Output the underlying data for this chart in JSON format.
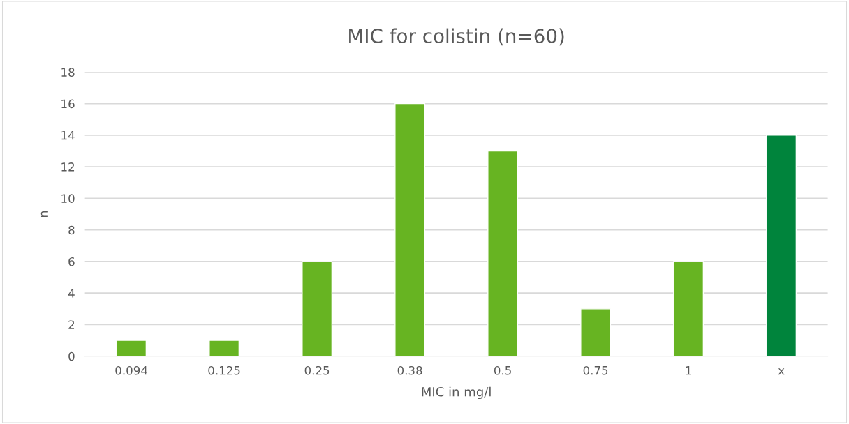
{
  "chart_data": {
    "type": "bar",
    "title": "MIC for colistin (n=60)",
    "xlabel": "MIC in mg/l",
    "ylabel": "n",
    "categories": [
      "0.094",
      "0.125",
      "0.25",
      "0.38",
      "0.5",
      "0.75",
      "1",
      "x"
    ],
    "values": [
      1,
      1,
      6,
      16,
      13,
      3,
      6,
      14
    ],
    "colors": [
      "#67b422",
      "#67b422",
      "#67b422",
      "#67b422",
      "#67b422",
      "#67b422",
      "#67b422",
      "#00843c"
    ],
    "ylim": [
      0,
      18
    ],
    "yticks": [
      0,
      2,
      4,
      6,
      8,
      10,
      12,
      14,
      16,
      18
    ],
    "grid": "y"
  }
}
